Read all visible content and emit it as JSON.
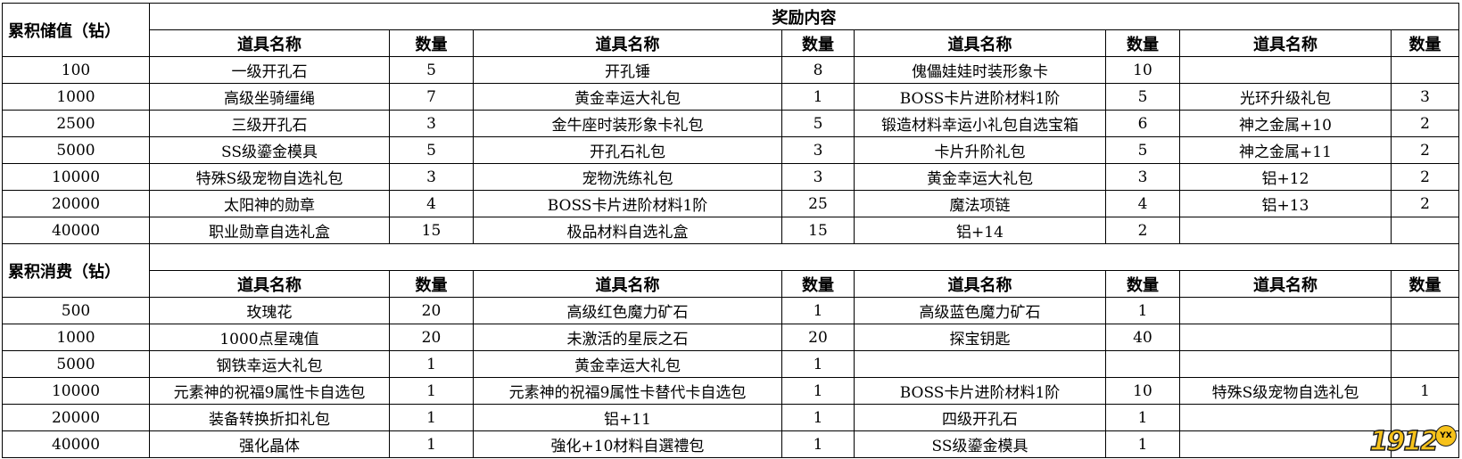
{
  "reward_title": "奖励内容",
  "headers": {
    "item_name": "道具名称",
    "quantity": "数量"
  },
  "sections": [
    {
      "label": "累积储值（钻）",
      "rows": [
        {
          "threshold": "100",
          "items": [
            [
              "一级开孔石",
              "5"
            ],
            [
              "开孔锤",
              "8"
            ],
            [
              "傀儡娃娃时装形象卡",
              "10"
            ],
            [
              "",
              ""
            ]
          ]
        },
        {
          "threshold": "1000",
          "items": [
            [
              "高级坐骑缰绳",
              "7"
            ],
            [
              "黄金幸运大礼包",
              "1"
            ],
            [
              "BOSS卡片进阶材料1阶",
              "5"
            ],
            [
              "光环升级礼包",
              "3"
            ]
          ]
        },
        {
          "threshold": "2500",
          "items": [
            [
              "三级开孔石",
              "3"
            ],
            [
              "金牛座时装形象卡礼包",
              "5"
            ],
            [
              "锻造材料幸运小礼包自选宝箱",
              "6"
            ],
            [
              "神之金属+10",
              "2"
            ]
          ]
        },
        {
          "threshold": "5000",
          "items": [
            [
              "SS级鎏金模具",
              "5"
            ],
            [
              "开孔石礼包",
              "3"
            ],
            [
              "卡片升阶礼包",
              "5"
            ],
            [
              "神之金属+11",
              "2"
            ]
          ]
        },
        {
          "threshold": "10000",
          "items": [
            [
              "特殊S级宠物自选礼包",
              "3"
            ],
            [
              "宠物洗练礼包",
              "3"
            ],
            [
              "黄金幸运大礼包",
              "3"
            ],
            [
              "铝+12",
              "2"
            ]
          ]
        },
        {
          "threshold": "20000",
          "items": [
            [
              "太阳神的勋章",
              "4"
            ],
            [
              "BOSS卡片进阶材料1阶",
              "25"
            ],
            [
              "魔法项链",
              "4"
            ],
            [
              "铝+13",
              "2"
            ]
          ]
        },
        {
          "threshold": "40000",
          "items": [
            [
              "职业勋章自选礼盒",
              "15"
            ],
            [
              "极品材料自选礼盒",
              "15"
            ],
            [
              "铝+14",
              "2"
            ],
            [
              "",
              ""
            ]
          ]
        }
      ]
    },
    {
      "label": "累积消费（钻）",
      "rows": [
        {
          "threshold": "500",
          "items": [
            [
              "玫瑰花",
              "20"
            ],
            [
              "高级红色魔力矿石",
              "1"
            ],
            [
              "高级蓝色魔力矿石",
              "1"
            ],
            [
              "",
              ""
            ]
          ]
        },
        {
          "threshold": "1000",
          "items": [
            [
              "1000点星魂值",
              "20"
            ],
            [
              "未激活的星辰之石",
              "20"
            ],
            [
              "探宝钥匙",
              "40"
            ],
            [
              "",
              ""
            ]
          ]
        },
        {
          "threshold": "5000",
          "items": [
            [
              "钢铁幸运大礼包",
              "1"
            ],
            [
              "黄金幸运大礼包",
              "1"
            ],
            [
              "",
              ""
            ],
            [
              "",
              ""
            ]
          ]
        },
        {
          "threshold": "10000",
          "items": [
            [
              "元素神的祝福9属性卡自选包",
              "1"
            ],
            [
              "元素神的祝福9属性卡替代卡自选包",
              "1"
            ],
            [
              "BOSS卡片进阶材料1阶",
              "10"
            ],
            [
              "特殊S级宠物自选礼包",
              "1"
            ]
          ]
        },
        {
          "threshold": "20000",
          "items": [
            [
              "装备转换折扣礼包",
              "1"
            ],
            [
              "铝+11",
              "1"
            ],
            [
              "四级开孔石",
              "1"
            ],
            [
              "",
              ""
            ]
          ]
        },
        {
          "threshold": "40000",
          "items": [
            [
              "强化晶体",
              "1"
            ],
            [
              "強化+10材料自選禮包",
              "1"
            ],
            [
              "SS级鎏金模具",
              "1"
            ],
            [
              "",
              ""
            ]
          ]
        }
      ]
    }
  ],
  "watermark": {
    "text": "1912",
    "badge": "YX",
    "accent": "#f7c21a"
  }
}
